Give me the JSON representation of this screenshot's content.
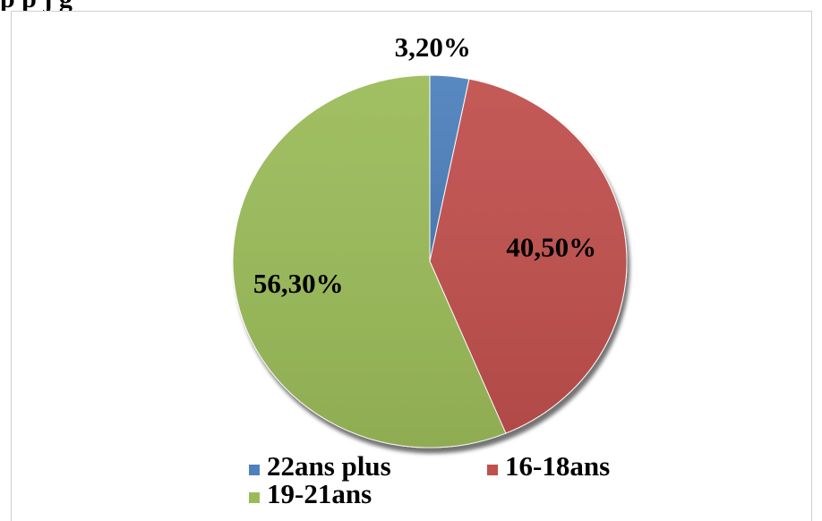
{
  "page": {
    "top_caption": "p                        p                        j                        g"
  },
  "chart_data": {
    "type": "pie",
    "title": "",
    "start_angle_deg": 0,
    "direction": "clockwise",
    "series": [
      {
        "name": "22ans plus",
        "value": 3.2,
        "label": "3,20%",
        "color": "#4f81bd"
      },
      {
        "name": "16-18ans",
        "value": 40.5,
        "label": "40,50%",
        "color": "#c0504d"
      },
      {
        "name": "19-21ans",
        "value": 56.3,
        "label": "56,30%",
        "color": "#9bbb59"
      }
    ],
    "legend": {
      "position": "bottom",
      "entries": [
        "22ans plus",
        "16-18ans",
        "19-21ans"
      ]
    }
  }
}
